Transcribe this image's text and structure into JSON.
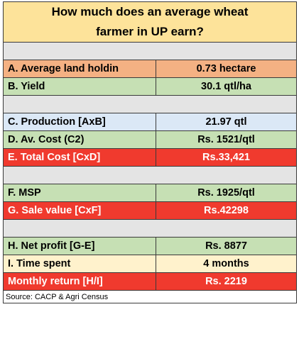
{
  "title_line1": "How much does an average wheat",
  "title_line2": "farmer in UP earn?",
  "rows": [
    {
      "label": "A. Average land holdin",
      "value": "0.73 hectare",
      "bg_label": "#f4b183",
      "bg_value": "#f4b183",
      "color": "#000000"
    },
    {
      "label": "B. Yield",
      "value": "30.1 qtl/ha",
      "bg_label": "#c6e0b4",
      "bg_value": "#c6e0b4",
      "color": "#000000"
    },
    {
      "label": "C. Production [AxB]",
      "value": "21.97 qtl",
      "bg_label": "#dbe8f6",
      "bg_value": "#dbe8f6",
      "color": "#000000"
    },
    {
      "label": "D. Av. Cost (C2)",
      "value": "Rs. 1521/qtl",
      "bg_label": "#c6e0b4",
      "bg_value": "#c6e0b4",
      "color": "#000000"
    },
    {
      "label": "E. Total Cost [CxD]",
      "value": "Rs.33,421",
      "bg_label": "#f03a2e",
      "bg_value": "#f03a2e",
      "color": "#ffffff"
    },
    {
      "label": "F. MSP",
      "value": "Rs. 1925/qtl",
      "bg_label": "#c6e0b4",
      "bg_value": "#c6e0b4",
      "color": "#000000"
    },
    {
      "label": "G. Sale value [CxF]",
      "value": "Rs.42298",
      "bg_label": "#f03a2e",
      "bg_value": "#f03a2e",
      "color": "#ffffff"
    },
    {
      "label": "H. Net profit [G-E]",
      "value": "Rs. 8877",
      "bg_label": "#c6e0b4",
      "bg_value": "#c6e0b4",
      "color": "#000000"
    },
    {
      "label": "I. Time spent",
      "value": "4 months",
      "bg_label": "#fff2cc",
      "bg_value": "#fff2cc",
      "color": "#000000"
    },
    {
      "label": "Monthly return [H/I]",
      "value": "Rs. 2219",
      "bg_label": "#f03a2e",
      "bg_value": "#f03a2e",
      "color": "#ffffff"
    }
  ],
  "source": "Source: CACP & Agri Census"
}
